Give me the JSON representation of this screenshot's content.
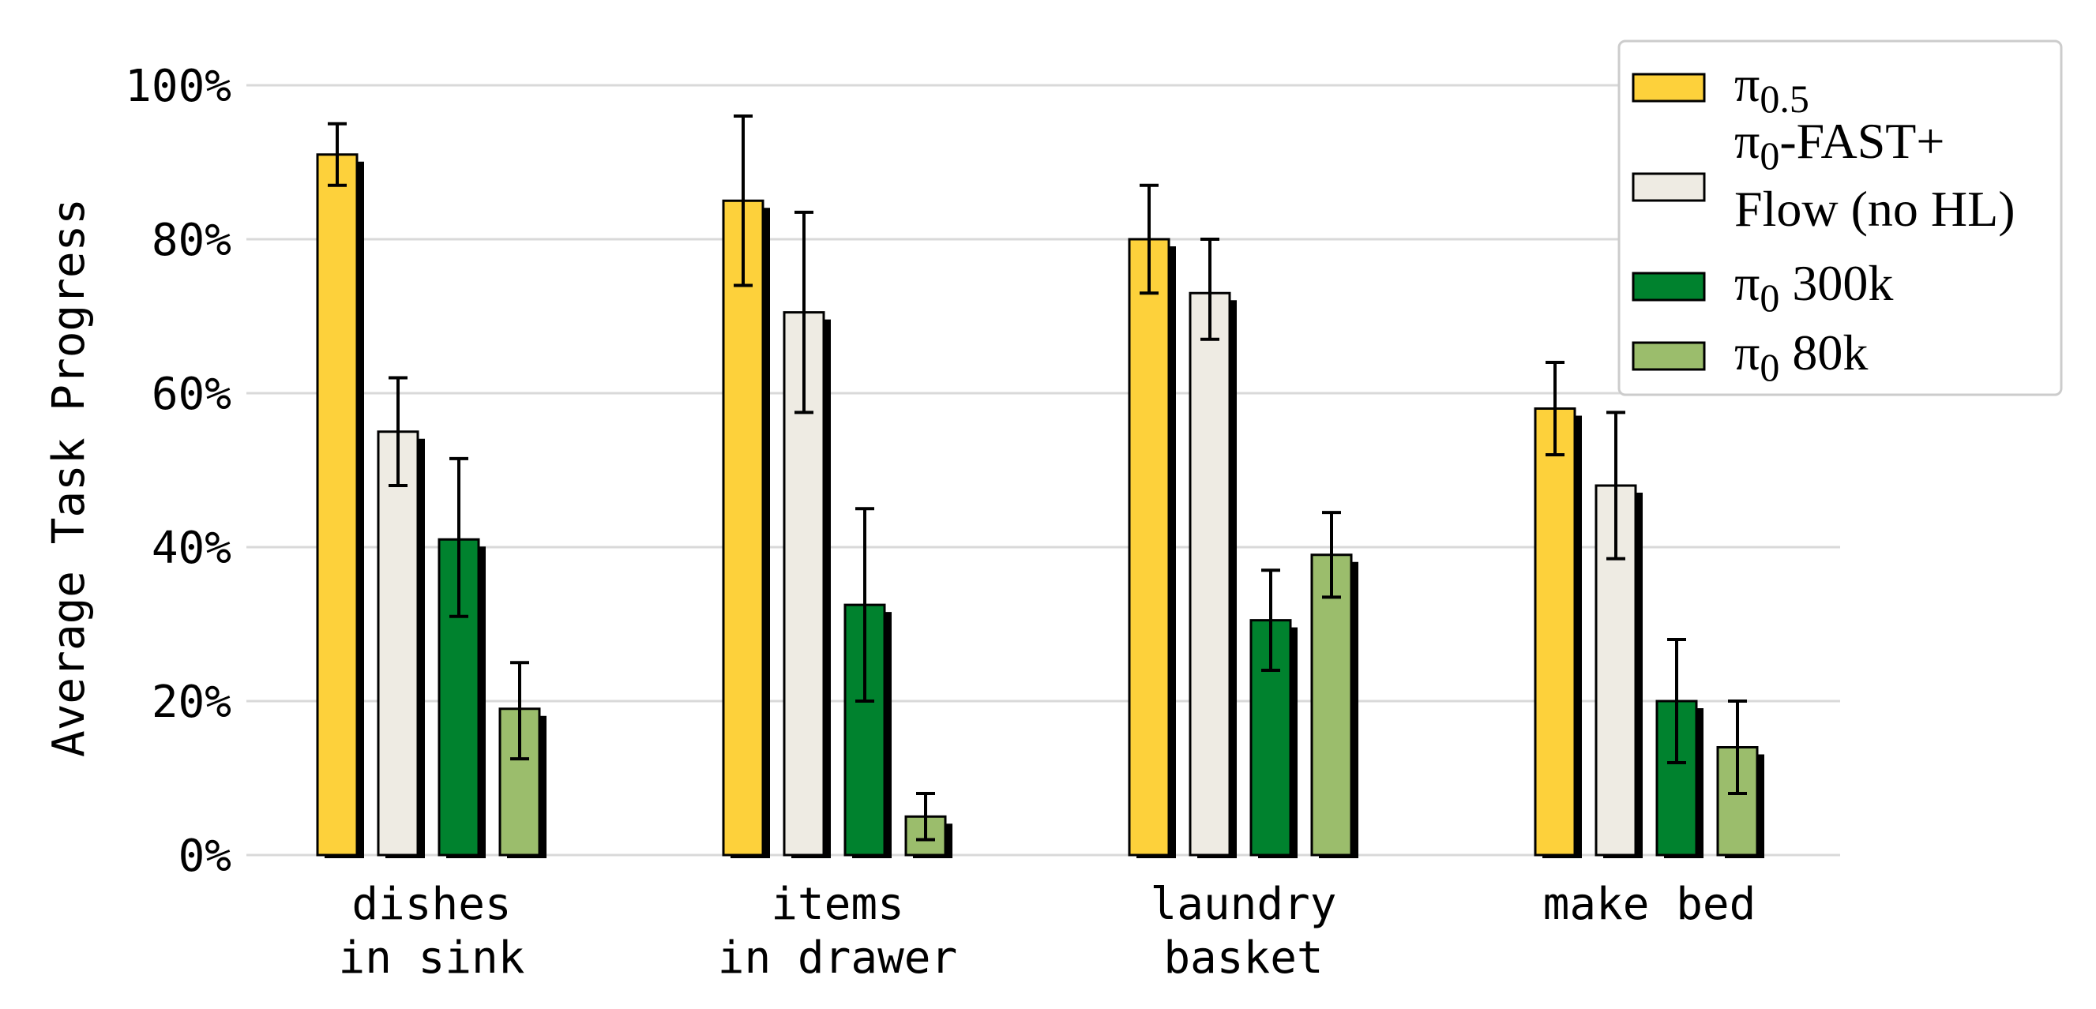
{
  "chart_data": {
    "type": "bar",
    "title": "",
    "xlabel": "",
    "ylabel": "Average Task Progress",
    "ylim": [
      0,
      100
    ],
    "y_ticks": [
      "0%",
      "20%",
      "40%",
      "60%",
      "80%",
      "100%"
    ],
    "y_tick_values": [
      0,
      20,
      40,
      60,
      80,
      100
    ],
    "grid": true,
    "legend_position": "top-right",
    "categories": [
      [
        "dishes",
        "in sink"
      ],
      [
        "items",
        "in drawer"
      ],
      [
        "laundry",
        "basket"
      ],
      [
        "make bed"
      ]
    ],
    "series": [
      {
        "name_base": "π",
        "name_sub": "0.5",
        "name_rest": "",
        "name_line2": "",
        "color": "#FDD13B",
        "values": [
          91,
          85,
          80,
          58
        ],
        "err_low": [
          87,
          74,
          73,
          52
        ],
        "err_high": [
          95,
          96,
          87,
          64
        ]
      },
      {
        "name_base": "π",
        "name_sub": "0",
        "name_rest": "-FAST+",
        "name_line2": "Flow (no HL)",
        "color": "#EEEBE3",
        "values": [
          55,
          70.5,
          73,
          48
        ],
        "err_low": [
          48,
          57.5,
          67,
          38.5
        ],
        "err_high": [
          62,
          83.5,
          80,
          57.5
        ]
      },
      {
        "name_base": "π",
        "name_sub": "0",
        "name_rest": " 300k",
        "name_line2": "",
        "color": "#00822E",
        "values": [
          41,
          32.5,
          30.5,
          20
        ],
        "err_low": [
          31,
          20,
          24,
          12
        ],
        "err_high": [
          51.5,
          45,
          37,
          28
        ]
      },
      {
        "name_base": "π",
        "name_sub": "0",
        "name_rest": " 80k",
        "name_line2": "",
        "color": "#9BBD6C",
        "values": [
          19,
          5,
          39,
          14
        ],
        "err_low": [
          12.5,
          2,
          33.5,
          8
        ],
        "err_high": [
          25,
          8,
          44.5,
          20
        ]
      }
    ]
  }
}
